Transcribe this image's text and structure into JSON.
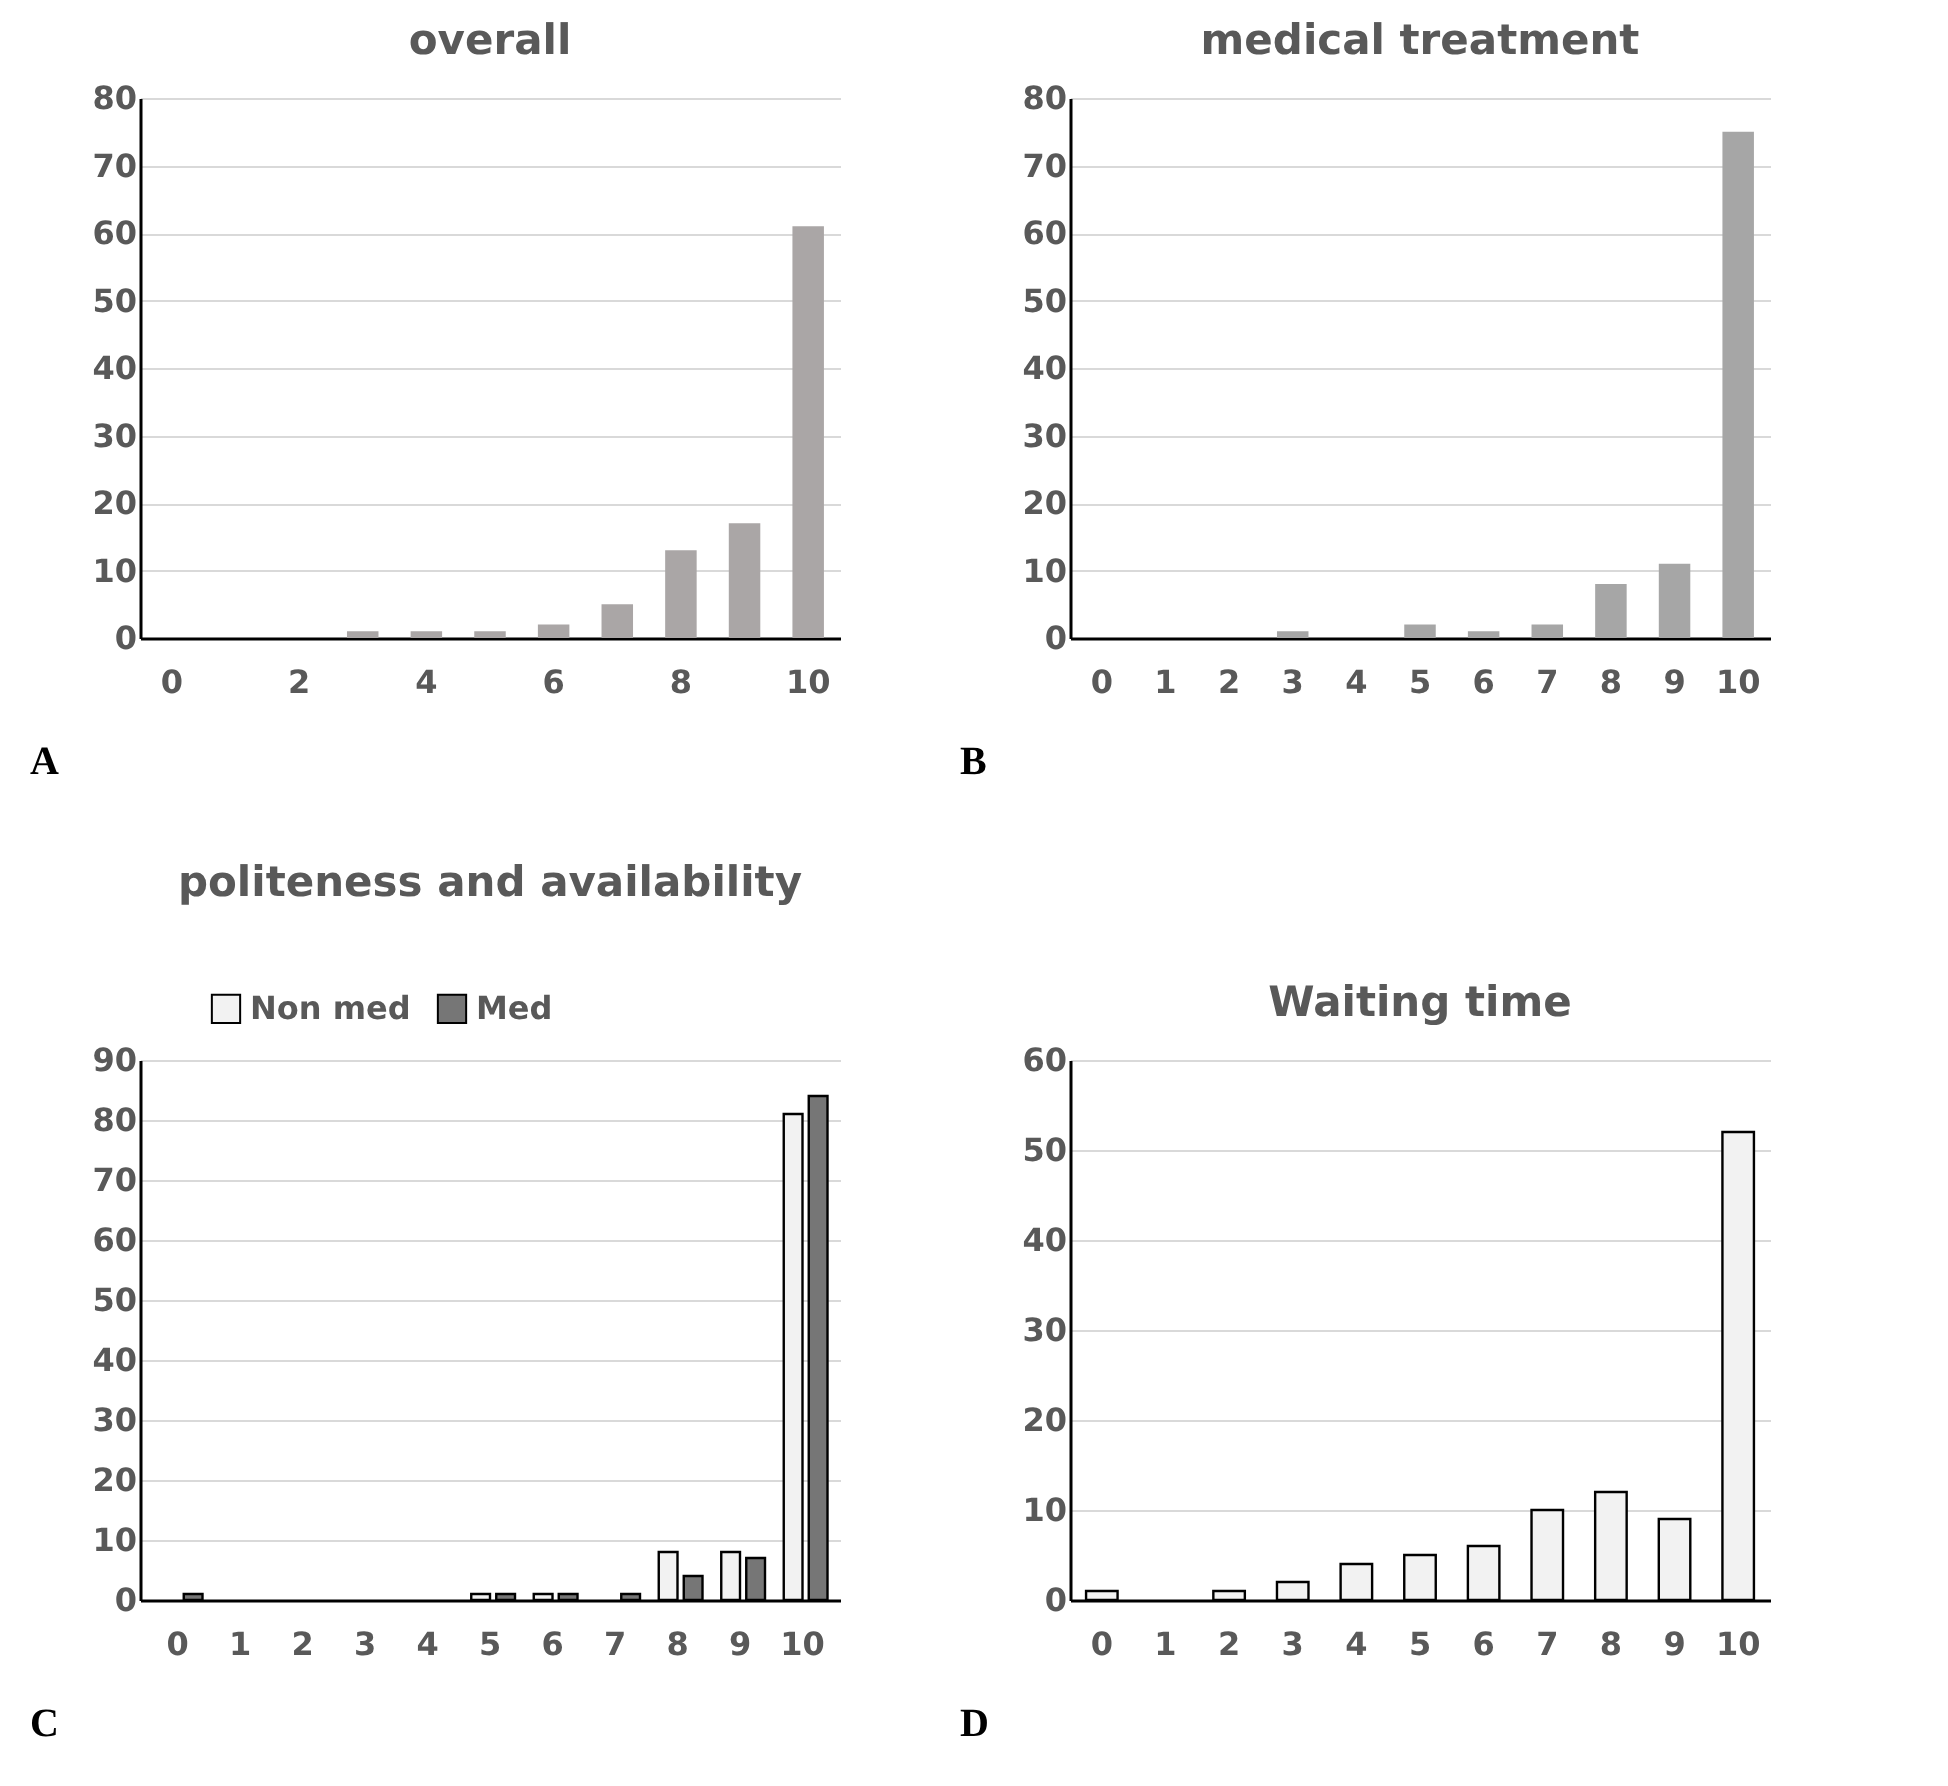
{
  "chart_data": [
    {
      "type": "bar",
      "title": "overall",
      "categories": [
        "0",
        null,
        "2",
        null,
        "4",
        null,
        "6",
        null,
        "8",
        null,
        "10"
      ],
      "values": [
        0,
        0,
        0,
        1,
        1,
        1,
        2,
        5,
        13,
        17,
        61
      ],
      "color": "#aaa6a6",
      "ylim": [
        0,
        80
      ],
      "yticks": [
        0,
        10,
        20,
        30,
        40,
        50,
        60,
        70,
        80
      ],
      "grid": "y",
      "annotations": [
        "A"
      ]
    },
    {
      "type": "bar",
      "title": "medical treatment",
      "categories": [
        "0",
        "1",
        "2",
        "3",
        "4",
        "5",
        "6",
        "7",
        "8",
        "9",
        "10"
      ],
      "values": [
        0,
        0,
        0,
        1,
        0,
        2,
        1,
        2,
        8,
        11,
        75
      ],
      "color": "#a6a6a6",
      "ylim": [
        0,
        80
      ],
      "yticks": [
        0,
        10,
        20,
        30,
        40,
        50,
        60,
        70,
        80
      ],
      "grid": "y",
      "annotations": [
        "B"
      ]
    },
    {
      "type": "bar",
      "title": "politeness and availability",
      "categories": [
        "0",
        "1",
        "2",
        "3",
        "4",
        "5",
        "6",
        "7",
        "8",
        "9",
        "10"
      ],
      "series": [
        {
          "name": "Non med",
          "color": "#f2f2f2",
          "values": [
            0,
            0,
            0,
            0,
            0,
            1,
            1,
            0,
            8,
            8,
            81
          ]
        },
        {
          "name": "Med",
          "color": "#767676",
          "values": [
            1,
            0,
            0,
            0,
            0,
            1,
            1,
            1,
            4,
            7,
            84
          ]
        }
      ],
      "ylim": [
        0,
        90
      ],
      "yticks": [
        0,
        10,
        20,
        30,
        40,
        50,
        60,
        70,
        80,
        90
      ],
      "grid": "y",
      "legend": "top",
      "annotations": [
        "C"
      ]
    },
    {
      "type": "bar",
      "title": "Waiting time",
      "categories": [
        "0",
        "1",
        "2",
        "3",
        "4",
        "5",
        "6",
        "7",
        "8",
        "9",
        "10"
      ],
      "values": [
        1,
        0,
        1,
        2,
        4,
        5,
        6,
        10,
        12,
        9,
        52
      ],
      "color": "#f2f2f2",
      "ylim": [
        0,
        60
      ],
      "yticks": [
        0,
        10,
        20,
        30,
        40,
        50,
        60
      ],
      "grid": "y",
      "annotations": [
        "D"
      ]
    }
  ]
}
